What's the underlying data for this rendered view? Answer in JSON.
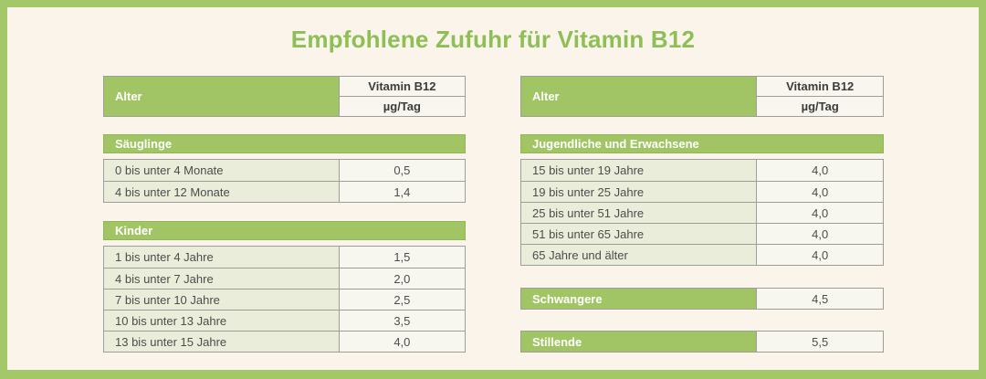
{
  "page": {
    "title": "Empfohlene Zufuhr für Vitamin B12"
  },
  "columns": {
    "age": "Alter",
    "nutrient": "Vitamin B12",
    "unit": "µg/Tag"
  },
  "left": {
    "sections": [
      {
        "title": "Säuglinge",
        "rows": [
          {
            "label": "0 bis unter 4 Monate",
            "value": "0,5"
          },
          {
            "label": "4 bis unter 12 Monate",
            "value": "1,4"
          }
        ]
      },
      {
        "title": "Kinder",
        "rows": [
          {
            "label": "1 bis unter 4 Jahre",
            "value": "1,5"
          },
          {
            "label": "4 bis unter 7 Jahre",
            "value": "2,0"
          },
          {
            "label": "7 bis unter 10 Jahre",
            "value": "2,5"
          },
          {
            "label": "10 bis unter 13 Jahre",
            "value": "3,5"
          },
          {
            "label": "13 bis unter 15 Jahre",
            "value": "4,0"
          }
        ]
      }
    ]
  },
  "right": {
    "sections": [
      {
        "title": "Jugendliche und Erwachsene",
        "rows": [
          {
            "label": "15 bis unter 19 Jahre",
            "value": "4,0"
          },
          {
            "label": "19 bis unter 25 Jahre",
            "value": "4,0"
          },
          {
            "label": "25 bis unter 51 Jahre",
            "value": "4,0"
          },
          {
            "label": "51 bis unter 65 Jahre",
            "value": "4,0"
          },
          {
            "label": "65 Jahre und älter",
            "value": "4,0"
          }
        ]
      }
    ],
    "single_rows": [
      {
        "label": "Schwangere",
        "value": "4,5"
      },
      {
        "label": "Stillende",
        "value": "5,5"
      }
    ]
  },
  "colors": {
    "frame_green": "#a4c869",
    "bar_green": "#a1c564",
    "title_green": "#8dbf56",
    "background_cream": "#faf4eb",
    "label_cell": "#e9edda",
    "value_cell": "#f8f7ef",
    "cell_border": "#9d9d99",
    "text_dark": "#4d4d4d"
  },
  "chart_data": {
    "type": "table",
    "title": "Empfohlene Zufuhr für Vitamin B12",
    "columns": [
      "Alter",
      "Vitamin B12 µg/Tag"
    ],
    "groups": [
      {
        "group": "Säuglinge",
        "rows": [
          [
            "0 bis unter 4 Monate",
            0.5
          ],
          [
            "4 bis unter 12 Monate",
            1.4
          ]
        ]
      },
      {
        "group": "Kinder",
        "rows": [
          [
            "1 bis unter 4 Jahre",
            1.5
          ],
          [
            "4 bis unter 7 Jahre",
            2.0
          ],
          [
            "7 bis unter 10 Jahre",
            2.5
          ],
          [
            "10 bis unter 13 Jahre",
            3.5
          ],
          [
            "13 bis unter 15 Jahre",
            4.0
          ]
        ]
      },
      {
        "group": "Jugendliche und Erwachsene",
        "rows": [
          [
            "15 bis unter 19 Jahre",
            4.0
          ],
          [
            "19 bis unter 25 Jahre",
            4.0
          ],
          [
            "25 bis unter 51 Jahre",
            4.0
          ],
          [
            "51 bis unter 65 Jahre",
            4.0
          ],
          [
            "65 Jahre und älter",
            4.0
          ]
        ]
      },
      {
        "group": "Schwangere",
        "rows": [
          [
            "Schwangere",
            4.5
          ]
        ]
      },
      {
        "group": "Stillende",
        "rows": [
          [
            "Stillende",
            5.5
          ]
        ]
      }
    ],
    "unit": "µg/Tag",
    "layout": "two side-by-side tables, green section bars, cream background"
  }
}
